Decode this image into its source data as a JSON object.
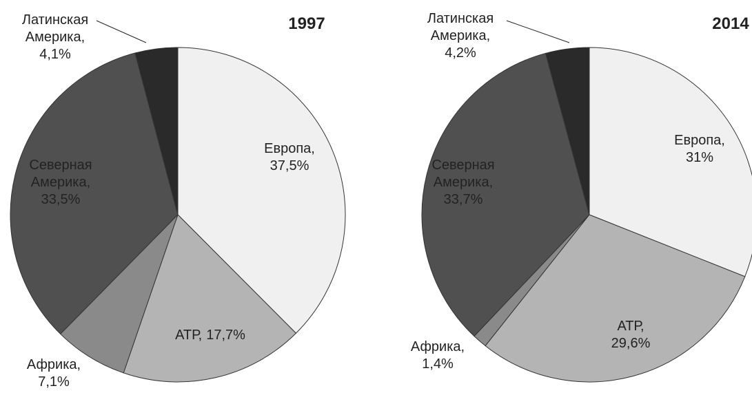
{
  "chart_data": [
    {
      "type": "pie",
      "title": "1997",
      "categories": [
        "Европа,",
        "АТР,",
        "Африка,",
        "Северная Америка,",
        "Латинская Америка,"
      ],
      "values": [
        37.5,
        17.7,
        7.1,
        33.5,
        4.1
      ],
      "value_labels": [
        "37,5%",
        "17,7%",
        "7,1%",
        "33,5%",
        "4,1%"
      ],
      "colors": [
        "#f0f0f0",
        "#b4b4b4",
        "#8a8a8a",
        "#505050",
        "#2a2a2a"
      ]
    },
    {
      "type": "pie",
      "title": "2014",
      "categories": [
        "Европа,",
        "АТР,",
        "Африка,",
        "Северная Америка,",
        "Латинская Америка,"
      ],
      "values": [
        31,
        29.6,
        1.4,
        33.7,
        4.2
      ],
      "value_labels": [
        "31%",
        "29,6%",
        "1,4%",
        "33,7%",
        "4,2%"
      ],
      "colors": [
        "#f0f0f0",
        "#b4b4b4",
        "#8a8a8a",
        "#505050",
        "#2a2a2a"
      ]
    }
  ]
}
